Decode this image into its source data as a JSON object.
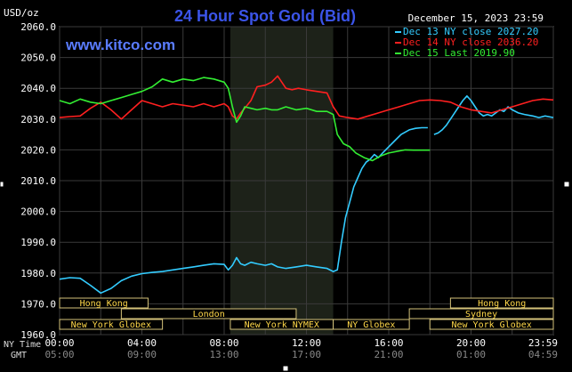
{
  "chart_data": {
    "type": "line",
    "title": "24 Hour Spot Gold (Bid)",
    "watermark": "www.kitco.com",
    "date_label": "December 15, 2023 23:59",
    "ylabel": "USD/oz",
    "ylim": [
      1960,
      2060
    ],
    "y_ticks": [
      "2060.0",
      "2050.0",
      "2040.0",
      "2030.0",
      "2020.0",
      "2010.0",
      "2000.0",
      "1990.0",
      "1980.0",
      "1970.0",
      "1960.0"
    ],
    "xlim": [
      0,
      24
    ],
    "x_ticks_ny": [
      "00:00",
      "04:00",
      "08:00",
      "12:00",
      "16:00",
      "20:00",
      "23:59"
    ],
    "x_ticks_gmt": [
      "05:00",
      "09:00",
      "13:00",
      "17:00",
      "21:00",
      "01:00",
      "04:59"
    ],
    "row_labels": {
      "ny": "NY Time",
      "gmt": "GMT"
    },
    "grid": true,
    "legend_position": "top-right",
    "shaded_session": {
      "label": "New York NYMEX",
      "start_hour": 8.3,
      "end_hour": 13.3
    },
    "sessions": [
      {
        "label": "Hong Kong",
        "row": 0,
        "start_hour": 0,
        "end_hour": 4.3
      },
      {
        "label": "London",
        "row": 1,
        "start_hour": 3,
        "end_hour": 11.5
      },
      {
        "label": "New York Globex",
        "row": 2,
        "start_hour": 0,
        "end_hour": 5
      },
      {
        "label": "New York NYMEX",
        "row": 2,
        "start_hour": 8.3,
        "end_hour": 13.3
      },
      {
        "label": "NY Globex",
        "row": 2,
        "start_hour": 13.3,
        "end_hour": 17
      },
      {
        "label": "Hong Kong",
        "row": 0,
        "start_hour": 19,
        "end_hour": 24
      },
      {
        "label": "Sydney",
        "row": 1,
        "start_hour": 17,
        "end_hour": 24
      },
      {
        "label": "New York Globex",
        "row": 2,
        "start_hour": 18,
        "end_hour": 24
      }
    ],
    "series": [
      {
        "name": "Dec 13 NY close 2027.20",
        "color": "#33ccff",
        "x": [
          0,
          0.5,
          1,
          1.5,
          2,
          2.5,
          3,
          3.5,
          4,
          4.5,
          5,
          5.5,
          6,
          6.5,
          7,
          7.5,
          8,
          8.2,
          8.4,
          8.6,
          8.8,
          9,
          9.3,
          9.6,
          10,
          10.3,
          10.6,
          11,
          11.5,
          12,
          12.5,
          13,
          13.3,
          13.5,
          13.7,
          13.9,
          14.1,
          14.3,
          14.5,
          14.7,
          14.9,
          15.1,
          15.3,
          15.5,
          15.7,
          16,
          16.3,
          16.6,
          17,
          17.3,
          17.6,
          17.9,
          18,
          18.2,
          18.4,
          18.6,
          18.8,
          19,
          19.2,
          19.4,
          19.6,
          19.8,
          20,
          20.2,
          20.4,
          20.6,
          20.8,
          21,
          21.2,
          21.4,
          21.6,
          21.8,
          22,
          22.3,
          22.6,
          23,
          23.3,
          23.6,
          24
        ],
        "values": [
          1978.0,
          1978.5,
          1978.3,
          1976.0,
          1973.5,
          1975.0,
          1977.5,
          1979.0,
          1979.8,
          1980.2,
          1980.5,
          1981.0,
          1981.5,
          1982.0,
          1982.5,
          1983.0,
          1982.8,
          1981.0,
          1982.5,
          1985.0,
          1983.0,
          1982.5,
          1983.5,
          1983.0,
          1982.5,
          1983.0,
          1982.0,
          1981.5,
          1982.0,
          1982.5,
          1982.0,
          1981.5,
          1980.5,
          1981.0,
          1990.0,
          1998.0,
          2003.0,
          2008.0,
          2011.0,
          2014.0,
          2016.0,
          2017.0,
          2018.5,
          2017.5,
          2019.0,
          2021.0,
          2023.0,
          2025.0,
          2026.5,
          2027.0,
          2027.2,
          2027.2,
          null,
          2025.0,
          2025.5,
          2026.5,
          2028.0,
          2030.0,
          2032.0,
          2034.0,
          2036.0,
          2037.5,
          2036.0,
          2034.0,
          2032.0,
          2031.0,
          2031.5,
          2031.0,
          2032.0,
          2033.0,
          2032.5,
          2034.0,
          2033.0,
          2032.0,
          2031.5,
          2031.0,
          2030.5,
          2031.0,
          2030.5
        ]
      },
      {
        "name": "Dec 14 NY close 2036.20",
        "color": "#ff2020",
        "x": [
          0,
          0.5,
          1,
          1.5,
          2,
          2.5,
          3,
          3.5,
          4,
          4.5,
          5,
          5.5,
          6,
          6.5,
          7,
          7.5,
          8,
          8.2,
          8.4,
          8.6,
          8.8,
          9,
          9.3,
          9.6,
          10,
          10.3,
          10.6,
          11,
          11.3,
          11.6,
          12,
          12.5,
          13,
          13.3,
          13.6,
          14,
          14.5,
          15,
          15.5,
          16,
          16.5,
          17,
          17.5,
          18,
          18.5,
          19,
          19.5,
          20,
          20.5,
          21,
          21.5,
          22,
          22.5,
          23,
          23.5,
          24
        ],
        "values": [
          2030.5,
          2030.8,
          2031.0,
          2033.5,
          2035.5,
          2033.0,
          2030.0,
          2033.0,
          2036.0,
          2035.0,
          2034.0,
          2035.0,
          2034.5,
          2034.0,
          2035.0,
          2034.0,
          2035.0,
          2034.0,
          2031.0,
          2030.0,
          2032.0,
          2033.5,
          2036.0,
          2040.5,
          2041.0,
          2042.0,
          2044.0,
          2040.0,
          2039.5,
          2040.0,
          2039.5,
          2039.0,
          2038.5,
          2034.0,
          2031.0,
          2030.5,
          2030.0,
          2031.0,
          2032.0,
          2033.0,
          2034.0,
          2035.0,
          2036.0,
          2036.2,
          2036.0,
          2035.5,
          2034.0,
          2033.0,
          2032.5,
          2032.0,
          2033.0,
          2034.0,
          2035.0,
          2036.0,
          2036.5,
          2036.2
        ]
      },
      {
        "name": "Dec 15 Last 2019.90",
        "color": "#33ee33",
        "x": [
          0,
          0.5,
          1,
          1.5,
          2,
          2.5,
          3,
          3.5,
          4,
          4.5,
          5,
          5.5,
          6,
          6.5,
          7,
          7.5,
          8,
          8.2,
          8.4,
          8.6,
          8.8,
          9,
          9.3,
          9.6,
          10,
          10.3,
          10.6,
          11,
          11.5,
          12,
          12.5,
          13,
          13.3,
          13.5,
          13.8,
          14.1,
          14.4,
          14.8,
          15.2,
          15.6,
          16,
          16.4,
          16.8,
          17.2,
          17.6,
          18
        ],
        "values": [
          2036.0,
          2035.0,
          2036.5,
          2035.5,
          2035.0,
          2036.0,
          2037.0,
          2038.0,
          2039.0,
          2040.5,
          2043.0,
          2042.0,
          2043.0,
          2042.5,
          2043.5,
          2043.0,
          2042.0,
          2040.0,
          2034.0,
          2029.0,
          2031.0,
          2034.0,
          2033.5,
          2033.0,
          2033.5,
          2033.0,
          2033.0,
          2034.0,
          2033.0,
          2033.5,
          2032.5,
          2032.5,
          2031.5,
          2025.0,
          2022.0,
          2021.0,
          2019.0,
          2017.5,
          2016.5,
          2018.0,
          2019.0,
          2019.5,
          2020.0,
          2019.9,
          2019.9,
          2019.9
        ]
      }
    ]
  }
}
